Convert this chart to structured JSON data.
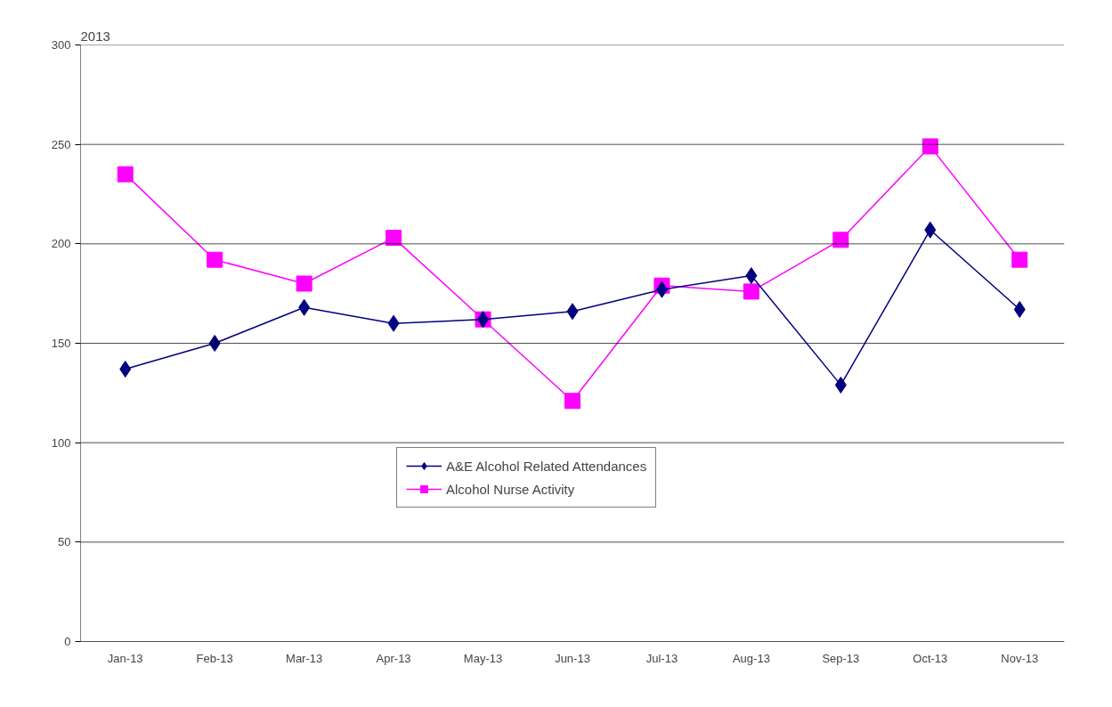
{
  "chart_data": {
    "type": "line",
    "title": "2013",
    "categories": [
      "Jan-13",
      "Feb-13",
      "Mar-13",
      "Apr-13",
      "May-13",
      "Jun-13",
      "Jul-13",
      "Aug-13",
      "Sep-13",
      "Oct-13",
      "Nov-13"
    ],
    "series": [
      {
        "name": "A&E Alcohol Related Attendances",
        "color": "#000080",
        "marker": "diamond",
        "values": [
          137,
          150,
          168,
          160,
          162,
          166,
          177,
          184,
          129,
          207,
          167
        ]
      },
      {
        "name": "Alcohol Nurse Activity",
        "color": "#ff00ff",
        "marker": "square",
        "values": [
          235,
          192,
          180,
          203,
          162,
          121,
          179,
          176,
          202,
          249,
          192
        ]
      }
    ],
    "ylim": [
      0,
      300
    ],
    "yticks": [
      0,
      50,
      100,
      150,
      200,
      250,
      300
    ],
    "grid": "y",
    "legend": "center"
  }
}
